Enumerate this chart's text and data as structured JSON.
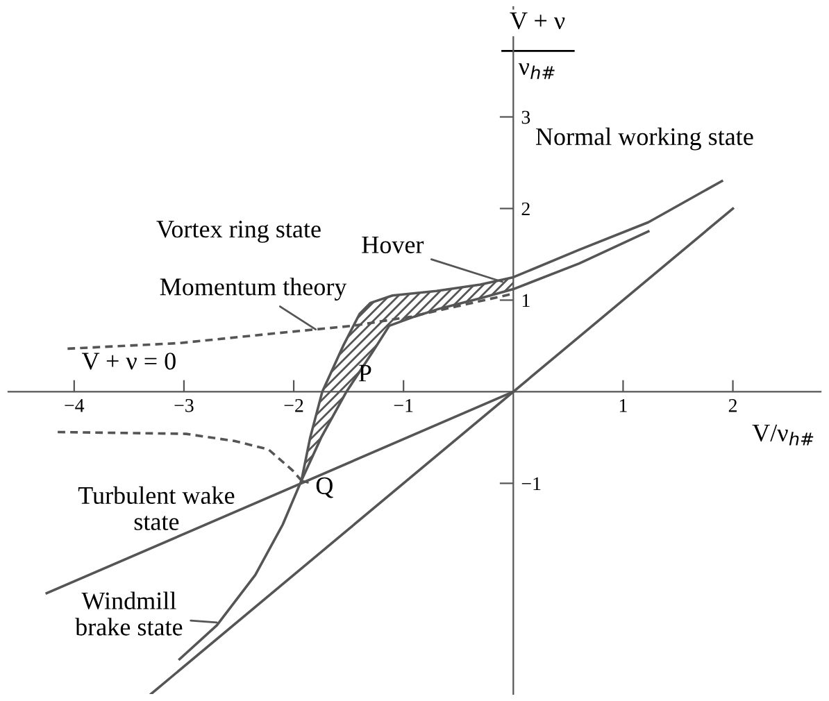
{
  "chart_data": {
    "type": "line",
    "xlabel": "V/ν$_{h#}$",
    "ylabel": "V + ν\nν$_{h#}$",
    "xlim": [
      -4.6,
      2.8
    ],
    "ylim": [
      -3.3,
      4.2
    ],
    "xticks": [
      -4,
      -3,
      -2,
      -1,
      1,
      2
    ],
    "yticks": [
      -1,
      1,
      2,
      3
    ],
    "grid": false,
    "marker": "none",
    "series": [
      {
        "color": "#555555",
        "line_style": "solid",
        "x": [
          -3.04,
          -2.7,
          -2.35,
          -2.1,
          -1.93,
          -1.85,
          -1.74,
          -1.55,
          -1.4,
          -1.3,
          -1.1,
          -0.7,
          -0.3,
          0,
          0.6,
          1.23,
          1.9
        ],
        "values": [
          -2.92,
          -2.55,
          -2.0,
          -1.45,
          -0.97,
          -0.5,
          0,
          0.5,
          0.85,
          0.97,
          1.05,
          1.1,
          1.17,
          1.25,
          1.55,
          1.85,
          2.3
        ]
      },
      {
        "color": "#555555",
        "line_style": "solid",
        "x": [
          -1.93,
          -1.75,
          -1.52,
          -1.3,
          -1.13,
          -0.9,
          -0.69,
          -0.3,
          0,
          0.6,
          1.23
        ],
        "values": [
          -0.97,
          -0.5,
          0,
          0.4,
          0.72,
          0.82,
          0.9,
          1.02,
          1.12,
          1.4,
          1.75
        ]
      },
      {
        "color": "#555555",
        "line_style": "dashed",
        "x": [
          -4.06,
          -3.05,
          -2.23,
          -1.46,
          -0.93,
          -0.15,
          0
        ],
        "values": [
          0.47,
          0.53,
          0.63,
          0.72,
          0.82,
          1.03,
          1.07
        ]
      },
      {
        "color": "#555555",
        "line_style": "dashed",
        "x": [
          -4.15,
          -2.98,
          -2.53,
          -2.23,
          -2.01,
          -1.93
        ],
        "values": [
          -0.44,
          -0.46,
          -0.54,
          -0.63,
          -0.86,
          -0.97
        ]
      },
      {
        "color": "#555555",
        "line_style": "solid",
        "x": [
          -3.3,
          2.0
        ],
        "values": [
          -3.3,
          2.0
        ]
      },
      {
        "color": "#555555",
        "line_style": "solid",
        "x": [
          -4.25,
          0
        ],
        "values": [
          -2.2,
          0
        ]
      }
    ],
    "annotations": [
      "Vortex ring state",
      "Normal working state",
      {
        "text": "Hover",
        "x": -0.1,
        "y": 1.2
      },
      {
        "text": "Momentum theory",
        "x": -1.8,
        "y": 0.68
      },
      "V + ν = 0",
      "P",
      {
        "text": "Q",
        "x": -1.93,
        "y": -0.97
      },
      "Turbulent wake\nstate",
      {
        "text": "Windmill\nbrake state",
        "x": -2.7,
        "y": -2.52
      }
    ]
  }
}
